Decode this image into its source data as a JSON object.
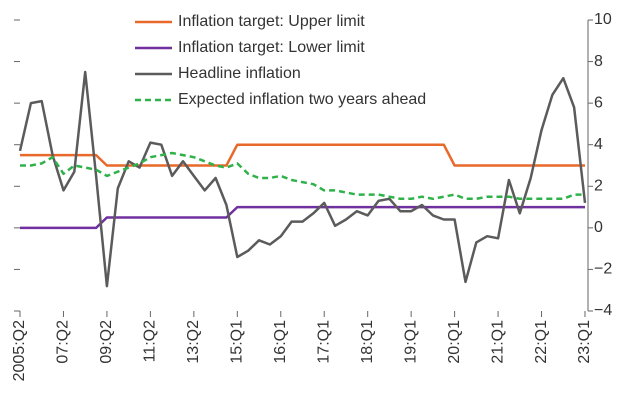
{
  "chart_data": {
    "type": "line",
    "categories": [
      "2005:Q2",
      null,
      null,
      null,
      "07:Q2",
      null,
      null,
      null,
      "09:Q2",
      null,
      null,
      null,
      "11:Q2",
      null,
      null,
      null,
      "13:Q2",
      null,
      null,
      null,
      "15:Q1",
      null,
      null,
      null,
      "16:Q1",
      null,
      null,
      null,
      "17:Q1",
      null,
      null,
      null,
      "18:Q1",
      null,
      null,
      null,
      "19:Q1",
      null,
      null,
      null,
      "20:Q1",
      null,
      null,
      null,
      "21:Q1",
      null,
      null,
      null,
      "22:Q1",
      null,
      null,
      null,
      "23:Q1"
    ],
    "series": [
      {
        "name": "Inflation target: Upper limit",
        "color": "#e8692a",
        "dash": false,
        "values": [
          3.5,
          3.5,
          3.5,
          3.5,
          3.5,
          3.5,
          3.5,
          3.5,
          3,
          3,
          3,
          3,
          3,
          3,
          3,
          3,
          3,
          3,
          3,
          3,
          4,
          4,
          4,
          4,
          4,
          4,
          4,
          4,
          4,
          4,
          4,
          4,
          4,
          4,
          4,
          4,
          4,
          4,
          4,
          4,
          3,
          3,
          3,
          3,
          3,
          3,
          3,
          3,
          3,
          3,
          3,
          3,
          3
        ]
      },
      {
        "name": "Inflation target: Lower limit",
        "color": "#7030a0",
        "dash": false,
        "values": [
          0,
          0,
          0,
          0,
          0,
          0,
          0,
          0,
          0.5,
          0.5,
          0.5,
          0.5,
          0.5,
          0.5,
          0.5,
          0.5,
          0.5,
          0.5,
          0.5,
          0.5,
          1,
          1,
          1,
          1,
          1,
          1,
          1,
          1,
          1,
          1,
          1,
          1,
          1,
          1,
          1,
          1,
          1,
          1,
          1,
          1,
          1,
          1,
          1,
          1,
          1,
          1,
          1,
          1,
          1,
          1,
          1,
          1,
          1
        ]
      },
      {
        "name": "Headline inflation",
        "color": "#5b5b5b",
        "dash": false,
        "values": [
          3.7,
          6.0,
          6.1,
          3.5,
          1.8,
          2.7,
          7.5,
          2.5,
          -2.8,
          1.9,
          3.2,
          2.9,
          4.1,
          4.0,
          2.5,
          3.2,
          2.5,
          1.8,
          2.4,
          1.1,
          -1.4,
          -1.1,
          -0.6,
          -0.8,
          -0.4,
          0.3,
          0.3,
          0.7,
          1.2,
          0.1,
          0.4,
          0.8,
          0.6,
          1.3,
          1.4,
          0.8,
          0.8,
          1.1,
          0.6,
          0.4,
          0.4,
          -2.6,
          -0.7,
          -0.4,
          -0.5,
          2.3,
          0.7,
          2.4,
          4.7,
          6.4,
          7.2,
          5.8,
          1.2
        ]
      },
      {
        "name": "Expected inflation two years ahead",
        "color": "#2fb24a",
        "dash": true,
        "values": [
          3.0,
          3.0,
          3.1,
          3.4,
          2.6,
          3.0,
          2.9,
          2.8,
          2.5,
          2.7,
          2.9,
          3.1,
          3.4,
          3.5,
          3.6,
          3.5,
          3.4,
          3.2,
          3.0,
          2.9,
          3.1,
          2.6,
          2.4,
          2.4,
          2.5,
          2.3,
          2.2,
          2.1,
          1.8,
          1.8,
          1.7,
          1.6,
          1.6,
          1.6,
          1.5,
          1.4,
          1.4,
          1.5,
          1.4,
          1.5,
          1.6,
          1.4,
          1.4,
          1.5,
          1.5,
          1.5,
          1.4,
          1.4,
          1.4,
          1.4,
          1.4,
          1.6,
          1.6
        ]
      }
    ],
    "ylim": [
      -4,
      10
    ],
    "yticks": [
      {
        "value": -4,
        "label": "−4"
      },
      {
        "value": -2,
        "label": "−2"
      },
      0,
      2,
      4,
      6,
      8,
      10
    ],
    "y_axis_side": "right",
    "grid": false
  }
}
